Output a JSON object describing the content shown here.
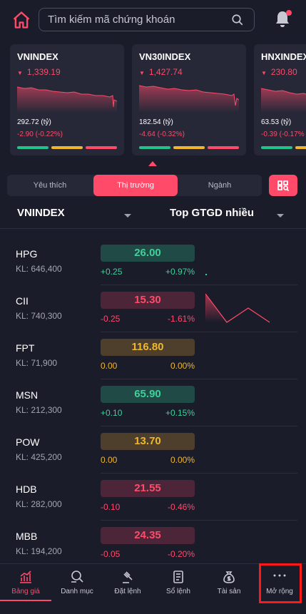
{
  "search": {
    "placeholder": "Tìm kiếm mã chứng khoán"
  },
  "indices": [
    {
      "name": "VNINDEX",
      "value": "1,339.19",
      "volume": "292.72 (tỷ)",
      "change": "-2.90 (-0.22%)"
    },
    {
      "name": "VN30INDEX",
      "value": "1,427.74",
      "volume": "182.54 (tỷ)",
      "change": "-4.64 (-0.32%)"
    },
    {
      "name": "HNXINDEX",
      "value": "230.80",
      "volume": "63.53 (tỷ)",
      "change": "-0.39 (-0.17%"
    }
  ],
  "tabs": [
    "Yêu thích",
    "Thị trường",
    "Ngành"
  ],
  "active_tab": "Thị trường",
  "filters": {
    "index": "VNINDEX",
    "sort": "Top GTGD nhiều"
  },
  "stocks": [
    {
      "symbol": "HPG",
      "kl": "KL: 646,400",
      "price": "26.00",
      "change": "+0.25",
      "pct": "+0.97%",
      "dir": "up"
    },
    {
      "symbol": "CII",
      "kl": "KL: 740,300",
      "price": "15.30",
      "change": "-0.25",
      "pct": "-1.61%",
      "dir": "down"
    },
    {
      "symbol": "FPT",
      "kl": "KL: 71,900",
      "price": "116.80",
      "change": "0.00",
      "pct": "0.00%",
      "dir": "flat"
    },
    {
      "symbol": "MSN",
      "kl": "KL: 212,300",
      "price": "65.90",
      "change": "+0.10",
      "pct": "+0.15%",
      "dir": "up"
    },
    {
      "symbol": "POW",
      "kl": "KL: 425,200",
      "price": "13.70",
      "change": "0.00",
      "pct": "0.00%",
      "dir": "flat"
    },
    {
      "symbol": "HDB",
      "kl": "KL: 282,000",
      "price": "21.55",
      "change": "-0.10",
      "pct": "-0.46%",
      "dir": "down"
    },
    {
      "symbol": "MBB",
      "kl": "KL: 194,200",
      "price": "24.35",
      "change": "-0.05",
      "pct": "-0.20%",
      "dir": "down"
    }
  ],
  "nav": [
    {
      "label": "Bảng giá",
      "icon": "chart-icon",
      "active": true
    },
    {
      "label": "Danh mục",
      "icon": "list-search-icon",
      "active": false
    },
    {
      "label": "Đặt lệnh",
      "icon": "gavel-icon",
      "active": false
    },
    {
      "label": "Sổ lệnh",
      "icon": "document-icon",
      "active": false
    },
    {
      "label": "Tài sản",
      "icon": "money-bag-icon",
      "active": false
    },
    {
      "label": "Mở rộng",
      "icon": "more-icon",
      "active": false
    }
  ],
  "colors": {
    "accent": "#ff4a6a",
    "up": "#3ed19a",
    "flat": "#f0b72e",
    "background": "#1b1c2a"
  }
}
